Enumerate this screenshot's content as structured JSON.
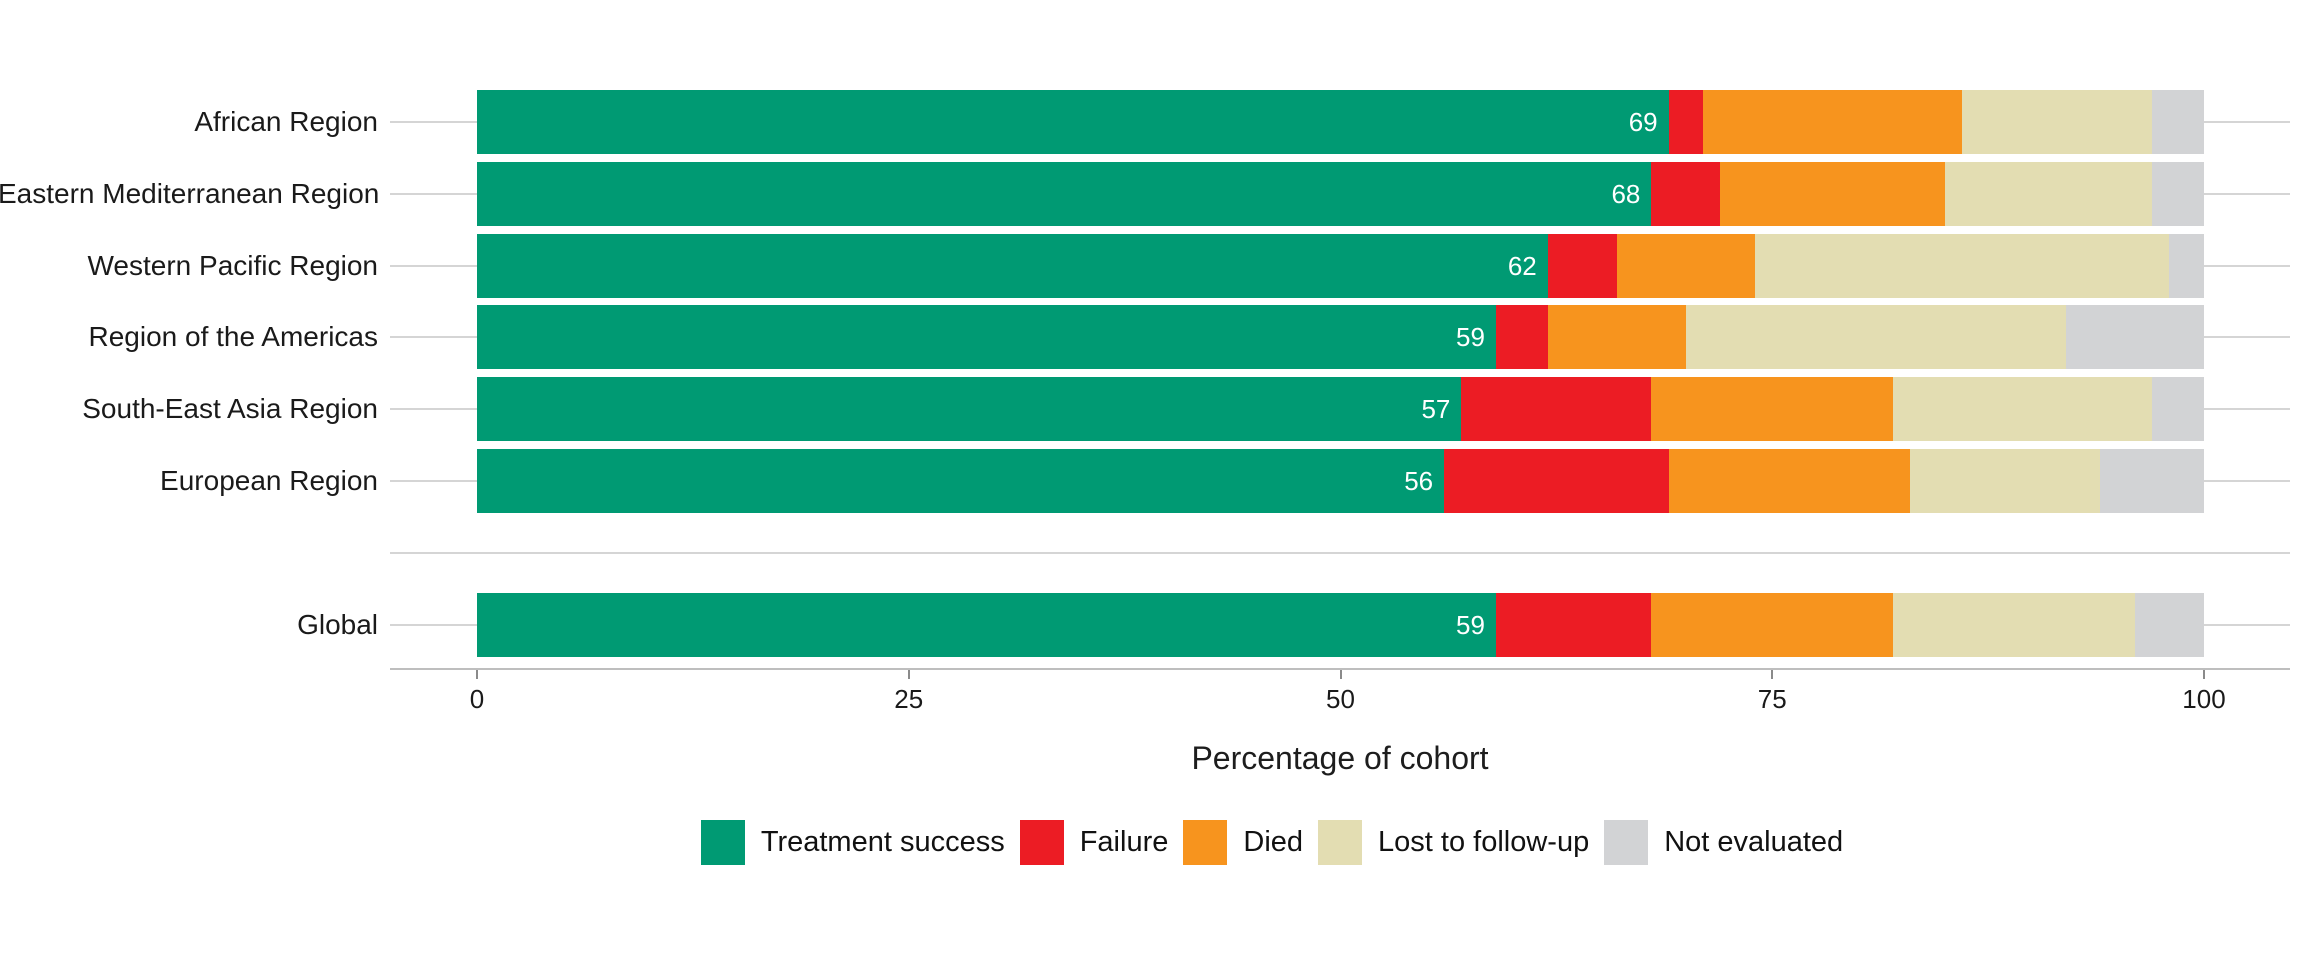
{
  "chart_data": {
    "type": "bar",
    "stacked": true,
    "orientation": "horizontal",
    "title": "",
    "xlabel": "Percentage of cohort",
    "ylabel": "",
    "xlim": [
      0,
      100
    ],
    "x_ticks": [
      0,
      25,
      50,
      75,
      100
    ],
    "grid": "horizontal row lines behind bars",
    "legend_position": "bottom-center",
    "series": [
      "Treatment success",
      "Failure",
      "Died",
      "Lost to follow-up",
      "Not evaluated"
    ],
    "colors": {
      "Treatment success": "#009a73",
      "Failure": "#ec1c24",
      "Died": "#f7941e",
      "Lost to follow-up": "#e3ddb2",
      "Not evaluated": "#d2d3d5"
    },
    "rows": [
      {
        "label": "African Region",
        "values": [
          69,
          2,
          15,
          11,
          3
        ],
        "success_label": "69"
      },
      {
        "label": "Eastern Mediterranean Region",
        "values": [
          68,
          4,
          13,
          12,
          3
        ],
        "success_label": "68"
      },
      {
        "label": "Western Pacific Region",
        "values": [
          62,
          4,
          8,
          24,
          2
        ],
        "success_label": "62"
      },
      {
        "label": "Region of the Americas",
        "values": [
          59,
          3,
          8,
          22,
          8
        ],
        "success_label": "59"
      },
      {
        "label": "South-East Asia Region",
        "values": [
          57,
          11,
          14,
          15,
          3
        ],
        "success_label": "57"
      },
      {
        "label": "European Region",
        "values": [
          56,
          13,
          14,
          11,
          6
        ],
        "success_label": "56"
      },
      {
        "label": "",
        "values": [],
        "success_label": ""
      },
      {
        "label": "Global",
        "values": [
          59,
          9,
          14,
          14,
          4
        ],
        "success_label": "59"
      }
    ]
  }
}
